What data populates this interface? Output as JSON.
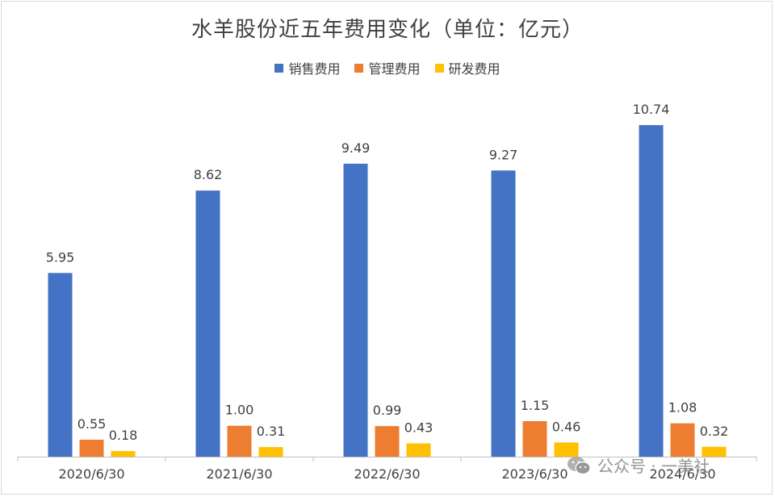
{
  "chart_data": {
    "type": "bar",
    "title": "水羊股份近五年费用变化（单位：亿元）",
    "categories": [
      "2020/6/30",
      "2021/6/30",
      "2022/6/30",
      "2023/6/30",
      "2024/6/30"
    ],
    "series": [
      {
        "name": "销售费用",
        "color": "#4472c4",
        "values": [
          5.95,
          8.62,
          9.49,
          9.27,
          10.74
        ],
        "labels": [
          "5.95",
          "8.62",
          "9.49",
          "9.27",
          "10.74"
        ]
      },
      {
        "name": "管理费用",
        "color": "#ed7d31",
        "values": [
          0.55,
          1.0,
          0.99,
          1.15,
          1.08
        ],
        "labels": [
          "0.55",
          "1.00",
          "0.99",
          "1.15",
          "1.08"
        ]
      },
      {
        "name": "研发费用",
        "color": "#ffc000",
        "values": [
          0.18,
          0.31,
          0.43,
          0.46,
          0.32
        ],
        "labels": [
          "0.18",
          "0.31",
          "0.43",
          "0.46",
          "0.32"
        ]
      }
    ],
    "ylim": [
      0,
      11.5
    ],
    "grid": false,
    "legend_position": "top"
  },
  "watermark": {
    "text": "公众号 · 一美社",
    "icon": "wechat-icon"
  }
}
